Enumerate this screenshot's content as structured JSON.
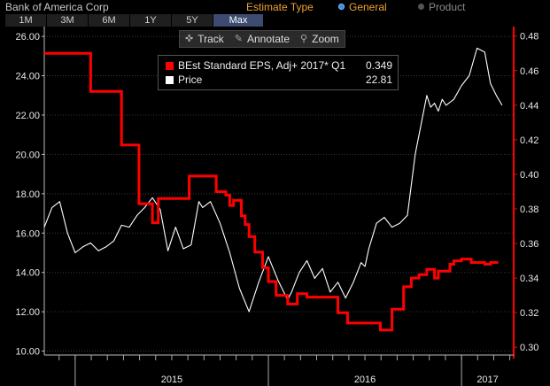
{
  "header": {
    "company": "Bank of America Corp",
    "estimate_type_label": "Estimate Type",
    "option_general": "General",
    "option_product": "Product"
  },
  "ranges": [
    "1M",
    "3M",
    "6M",
    "1Y",
    "5Y",
    "Max"
  ],
  "active_range": "Max",
  "tools": [
    {
      "icon": "crosshair-icon",
      "label": "Track"
    },
    {
      "icon": "pencil-icon",
      "label": "Annotate"
    },
    {
      "icon": "magnifier-icon",
      "label": "Zoom"
    }
  ],
  "legend": {
    "eps_label": "BEst Standard EPS, Adj+ 2017* Q1",
    "eps_value": "0.349",
    "price_label": "Price",
    "price_value": "22.81"
  },
  "colors": {
    "eps": "#ff0000",
    "price": "#ffffff",
    "accent": "#f0a030",
    "grid": "#3a3a3a"
  },
  "chart_data": {
    "type": "line",
    "x_range": [
      2014.84,
      2017.27
    ],
    "x_ticks": [
      {
        "label": "2015",
        "x": 2015.0
      },
      {
        "label": "2016",
        "x": 2016.0
      },
      {
        "label": "2017",
        "x": 2017.0
      }
    ],
    "left_axis": {
      "ylim": [
        9.8,
        26.5
      ],
      "ticks": [
        10.0,
        12.0,
        14.0,
        16.0,
        18.0,
        20.0,
        22.0,
        24.0,
        26.0
      ],
      "tick_labels": [
        "10.00",
        "12.00",
        "14.00",
        "16.00",
        "18.00",
        "20.00",
        "22.00",
        "24.00",
        "26.00"
      ]
    },
    "right_axis": {
      "ylim": [
        0.2955,
        0.4855
      ],
      "ticks": [
        0.3,
        0.32,
        0.34,
        0.36,
        0.38,
        0.4,
        0.42,
        0.44,
        0.46,
        0.48
      ],
      "tick_labels": [
        "0.30",
        "0.32",
        "0.34",
        "0.36",
        "0.38",
        "0.40",
        "0.42",
        "0.44",
        "0.46",
        "0.48"
      ]
    },
    "series": [
      {
        "name": "Price",
        "axis": "left",
        "x": [
          2014.84,
          2014.88,
          2014.92,
          2014.96,
          2015.0,
          2015.04,
          2015.08,
          2015.12,
          2015.16,
          2015.2,
          2015.24,
          2015.28,
          2015.32,
          2015.36,
          2015.4,
          2015.44,
          2015.48,
          2015.52,
          2015.56,
          2015.6,
          2015.64,
          2015.66,
          2015.7,
          2015.75,
          2015.8,
          2015.85,
          2015.9,
          2015.95,
          2016.0,
          2016.05,
          2016.1,
          2016.12,
          2016.16,
          2016.2,
          2016.24,
          2016.28,
          2016.32,
          2016.36,
          2016.4,
          2016.44,
          2016.48,
          2016.5,
          2016.52,
          2016.56,
          2016.6,
          2016.64,
          2016.68,
          2016.72,
          2016.76,
          2016.8,
          2016.82,
          2016.84,
          2016.86,
          2016.88,
          2016.9,
          2016.92,
          2016.96,
          2017.0,
          2017.04,
          2017.08,
          2017.12,
          2017.15,
          2017.18,
          2017.21
        ],
        "values": [
          16.3,
          17.3,
          17.6,
          16.0,
          15.0,
          15.3,
          15.5,
          15.1,
          15.3,
          15.6,
          16.4,
          16.3,
          16.9,
          17.3,
          17.8,
          17.2,
          15.1,
          16.3,
          15.2,
          15.4,
          17.6,
          17.3,
          17.6,
          16.5,
          15.0,
          13.2,
          12.0,
          13.5,
          14.8,
          13.6,
          12.6,
          13.0,
          14.0,
          14.6,
          13.7,
          14.2,
          13.0,
          13.5,
          12.7,
          13.5,
          14.5,
          14.3,
          15.2,
          16.5,
          16.8,
          16.3,
          16.5,
          16.9,
          20.0,
          22.0,
          23.0,
          22.4,
          22.6,
          22.2,
          22.8,
          22.5,
          22.8,
          23.5,
          24.0,
          25.4,
          25.2,
          23.6,
          23.0,
          22.5
        ]
      },
      {
        "name": "BEst Standard EPS, Adj+ 2017* Q1",
        "axis": "right",
        "x": [
          2014.84,
          2015.08,
          2015.08,
          2015.24,
          2015.24,
          2015.33,
          2015.33,
          2015.4,
          2015.4,
          2015.43,
          2015.43,
          2015.59,
          2015.59,
          2015.73,
          2015.73,
          2015.78,
          2015.78,
          2015.8,
          2015.8,
          2015.82,
          2015.82,
          2015.86,
          2015.86,
          2015.88,
          2015.88,
          2015.9,
          2015.9,
          2015.93,
          2015.93,
          2015.97,
          2015.97,
          2016.0,
          2016.0,
          2016.04,
          2016.04,
          2016.1,
          2016.1,
          2016.15,
          2016.15,
          2016.2,
          2016.2,
          2016.36,
          2016.36,
          2016.41,
          2016.41,
          2016.58,
          2016.58,
          2016.64,
          2016.64,
          2016.7,
          2016.7,
          2016.74,
          2016.74,
          2016.78,
          2016.78,
          2016.82,
          2016.82,
          2016.86,
          2016.86,
          2016.88,
          2016.88,
          2016.94,
          2016.94,
          2016.96,
          2016.96,
          2017.0,
          2017.0,
          2017.05,
          2017.05,
          2017.12,
          2017.12,
          2017.15,
          2017.15,
          2017.19
        ],
        "values": [
          0.47,
          0.47,
          0.448,
          0.448,
          0.417,
          0.417,
          0.383,
          0.383,
          0.372,
          0.372,
          0.386,
          0.386,
          0.399,
          0.399,
          0.39,
          0.39,
          0.388,
          0.388,
          0.382,
          0.382,
          0.385,
          0.385,
          0.376,
          0.376,
          0.371,
          0.371,
          0.364,
          0.364,
          0.355,
          0.355,
          0.346,
          0.346,
          0.338,
          0.338,
          0.33,
          0.33,
          0.325,
          0.325,
          0.331,
          0.331,
          0.329,
          0.329,
          0.32,
          0.32,
          0.314,
          0.314,
          0.31,
          0.31,
          0.322,
          0.322,
          0.335,
          0.335,
          0.34,
          0.34,
          0.342,
          0.342,
          0.345,
          0.345,
          0.34,
          0.34,
          0.344,
          0.344,
          0.348,
          0.348,
          0.35,
          0.35,
          0.351,
          0.351,
          0.349,
          0.349,
          0.348,
          0.348,
          0.349,
          0.349
        ]
      }
    ]
  }
}
